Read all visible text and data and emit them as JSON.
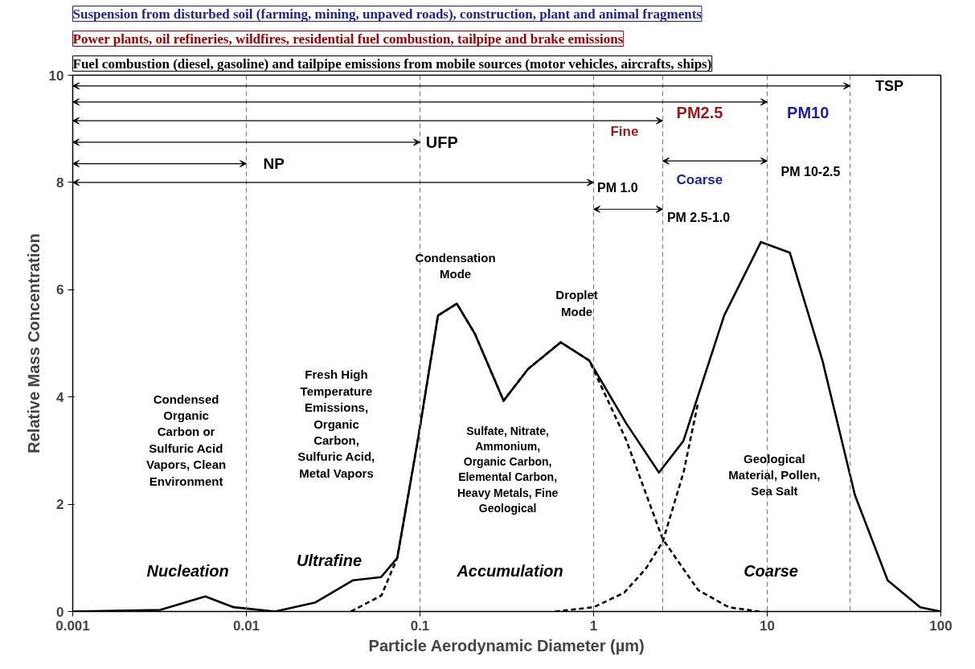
{
  "chart_data": {
    "type": "line",
    "xlabel": "Particle Aerodynamic Diameter (µm)",
    "ylabel": "Relative Mass Concentration",
    "log": "x",
    "grid": false,
    "xlim": [
      0.001,
      100
    ],
    "ylim": [
      0,
      10
    ],
    "xticks": [
      {
        "value": 0.001,
        "label": "0.001"
      },
      {
        "value": 0.01,
        "label": "0.01"
      },
      {
        "value": 0.1,
        "label": "0.1"
      },
      1,
      10,
      100
    ],
    "yticks": [
      0,
      2,
      4,
      6,
      8,
      10
    ],
    "series": [
      {
        "color": "#000000",
        "line_style": "solid",
        "x": [
          0.001,
          0.00319,
          0.0058,
          0.00845,
          0.0146,
          0.025,
          0.041,
          0.0596,
          0.074,
          0.097,
          0.127,
          0.163,
          0.207,
          0.303,
          0.419,
          0.646,
          0.944,
          1.54,
          2.38,
          3.29,
          5.65,
          9.2,
          13.5,
          20.8,
          32,
          49.4,
          76,
          100
        ],
        "values": [
          0,
          0.03,
          0.28,
          0.08,
          0,
          0.17,
          0.58,
          0.64,
          1.0,
          3.18,
          5.52,
          5.74,
          5.18,
          3.93,
          4.52,
          5.02,
          4.68,
          3.51,
          2.59,
          3.18,
          5.52,
          6.89,
          6.69,
          4.68,
          2.17,
          0.58,
          0.08,
          0
        ]
      },
      {
        "color": "#000000",
        "line_style": "dashed",
        "x": [
          0.04,
          0.06,
          0.074,
          0.097,
          0.127,
          0.163,
          0.207,
          0.303,
          0.419,
          0.646,
          0.944,
          1.54,
          2.5,
          4,
          6,
          9
        ],
        "values": [
          0,
          0.3,
          1.0,
          3.18,
          5.52,
          5.74,
          5.18,
          3.93,
          4.52,
          5.02,
          4.68,
          3.2,
          1.35,
          0.4,
          0.08,
          0
        ]
      },
      {
        "color": "#000000",
        "line_style": "dashed",
        "x": [
          0.6,
          1,
          1.5,
          2,
          2.5,
          3.3,
          4
        ],
        "values": [
          0,
          0.08,
          0.35,
          0.8,
          1.3,
          2.6,
          3.9
        ]
      },
      {
        "color": "#000000",
        "marker": "diamond",
        "x": [
          0.001,
          30
        ],
        "values": [
          9.8,
          9.8
        ]
      },
      {
        "color": "#000000",
        "marker": "diamond",
        "x": [
          0.001,
          10
        ],
        "values": [
          9.5,
          9.5
        ]
      },
      {
        "color": "#000000",
        "marker": "diamond",
        "x": [
          0.001,
          2.5
        ],
        "values": [
          9.15,
          9.15
        ]
      },
      {
        "color": "#000000",
        "marker": "diamond",
        "x": [
          0.001,
          0.1
        ],
        "values": [
          8.75,
          8.75
        ]
      },
      {
        "color": "#000000",
        "marker": "diamond",
        "x": [
          0.001,
          0.01
        ],
        "values": [
          8.35,
          8.35
        ]
      },
      {
        "color": "#000000",
        "marker": "diamond",
        "x": [
          0.001,
          1
        ],
        "values": [
          8.0,
          8.0
        ]
      },
      {
        "color": "#000000",
        "marker": "diamond",
        "x": [
          2.5,
          10
        ],
        "values": [
          8.4,
          8.4
        ]
      },
      {
        "color": "#000000",
        "marker": "diamond",
        "x": [
          1,
          2.5
        ],
        "values": [
          7.5,
          7.5
        ]
      }
    ],
    "ref_lines": [
      {
        "axis": "x",
        "value": 0.01,
        "color": "#808080",
        "line_style": "dashed"
      },
      {
        "axis": "x",
        "value": 0.1,
        "color": "#808080",
        "line_style": "dashed"
      },
      {
        "axis": "x",
        "value": 1,
        "color": "#808080",
        "line_style": "dashed"
      },
      {
        "axis": "x",
        "value": 2.5,
        "color": "#808080",
        "line_style": "dashed"
      },
      {
        "axis": "x",
        "value": 10,
        "color": "#808080",
        "line_style": "dashed"
      },
      {
        "axis": "x",
        "value": 30,
        "color": "#808080",
        "line_style": "dashed"
      }
    ],
    "annotations": [
      "Suspension from disturbed soil (farming, mining, unpaved roads), construction, plant and animal fragments",
      "Power plants, oil refineries, wildfires, residential fuel combustion, tailpipe and brake emissions",
      "Fuel combustion (diesel, gasoline) and tailpipe emissions from mobile sources (motor vehicles, aircrafts, ships)",
      "TSP",
      "PM10",
      "PM2.5",
      "Fine",
      "UFP",
      "NP",
      "Coarse",
      "PM 10-2.5",
      "PM 1.0",
      "PM 2.5-1.0",
      "Condensation\nMode",
      "Droplet\nMode",
      "Condensed\nOrganic\nCarbon or\nSulfuric Acid\nVapors, Clean\nEnvironment",
      "Fresh High\nTemperature\nEmissions,\nOrganic\nCarbon,\nSulfuric Acid,\nMetal Vapors",
      "Sulfate, Nitrate,\nAmmonium,\nOrganic Carbon,\nElemental Carbon,\nHeavy Metals, Fine\nGeological",
      "Geological\nMaterial, Pollen,\nSea Salt",
      "Nucleation",
      "Ultrafine",
      "Accumulation",
      "Coarse"
    ]
  }
}
